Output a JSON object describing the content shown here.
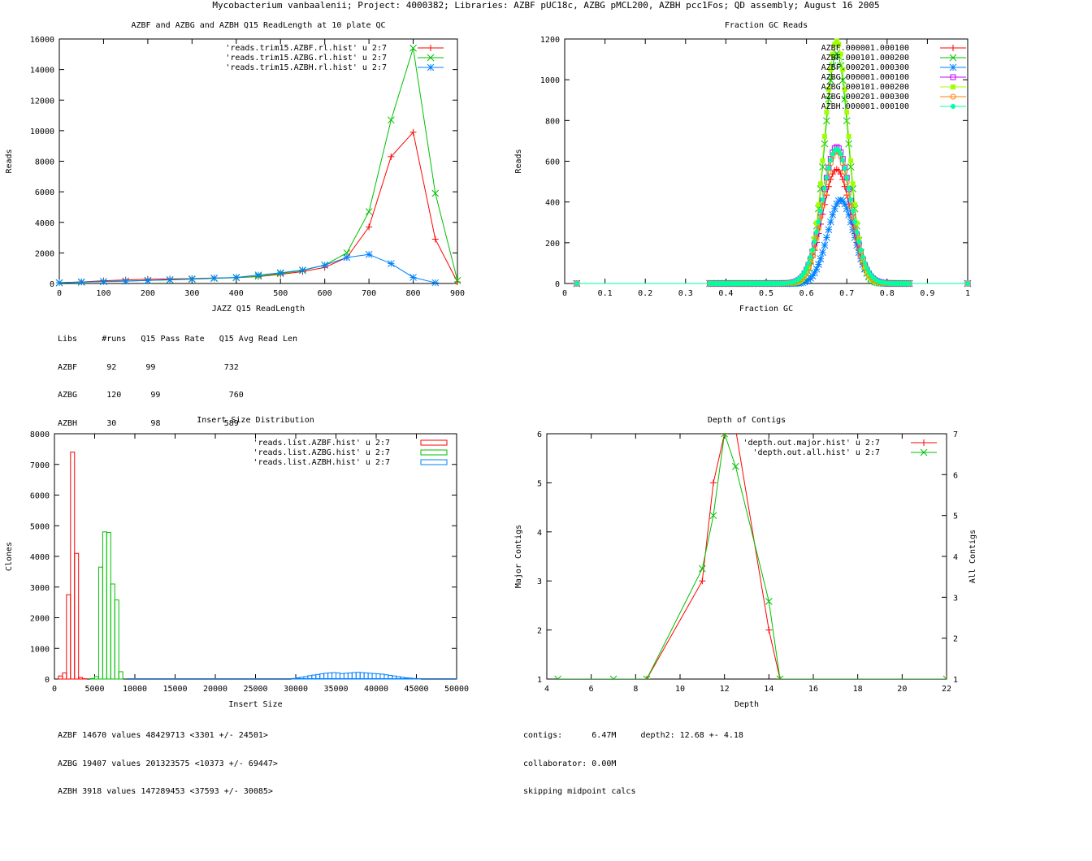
{
  "page_title": "Mycobacterium vanbaalenii; Project: 4000382; Libraries: AZBF pUC18c, AZBG pMCL200, AZBH pcc1Fos; QD assembly; August 16 2005",
  "colors": {
    "red": "#ff0000",
    "green": "#00c000",
    "blue": "#0080ff",
    "magenta": "#c000ff",
    "lime": "#a0ff00",
    "orange": "#ff8000",
    "aqua": "#00ffa0"
  },
  "chart_data": [
    {
      "id": "readlength",
      "type": "line",
      "title": "AZBF and AZBG and AZBH Q15 ReadLength at 10 plate QC",
      "xlabel": "JAZZ Q15 ReadLength",
      "ylabel": "Reads",
      "xlim": [
        0,
        900
      ],
      "ylim": [
        0,
        16000
      ],
      "xticks": [
        0,
        100,
        200,
        300,
        400,
        500,
        600,
        700,
        800,
        900
      ],
      "yticks": [
        0,
        2000,
        4000,
        6000,
        8000,
        10000,
        12000,
        14000,
        16000
      ],
      "legend_position": "top-right",
      "series": [
        {
          "name": "'reads.trim15.AZBF.rl.hist' u 2:7",
          "color": "#ff0000",
          "marker": "plus",
          "x": [
            0,
            50,
            100,
            150,
            200,
            250,
            300,
            350,
            400,
            450,
            500,
            550,
            600,
            650,
            700,
            750,
            800,
            850,
            900
          ],
          "y": [
            50,
            100,
            180,
            230,
            280,
            300,
            320,
            360,
            380,
            450,
            600,
            780,
            1050,
            1700,
            3700,
            8300,
            9900,
            2900,
            100
          ]
        },
        {
          "name": "'reads.trim15.AZBG.rl.hist' u 2:7",
          "color": "#00c000",
          "marker": "x",
          "x": [
            0,
            50,
            100,
            150,
            200,
            250,
            300,
            350,
            400,
            450,
            500,
            550,
            600,
            650,
            700,
            750,
            800,
            850,
            900
          ],
          "y": [
            40,
            80,
            130,
            160,
            200,
            230,
            280,
            330,
            380,
            480,
            650,
            850,
            1200,
            2000,
            4700,
            10700,
            15400,
            5900,
            200
          ]
        },
        {
          "name": "'reads.trim15.AZBH.rl.hist' u 2:7",
          "color": "#0080ff",
          "marker": "star",
          "x": [
            0,
            50,
            100,
            150,
            200,
            250,
            300,
            350,
            400,
            450,
            500,
            550,
            600,
            650,
            700,
            750,
            800,
            850
          ],
          "y": [
            50,
            100,
            120,
            150,
            200,
            250,
            300,
            350,
            400,
            550,
            700,
            880,
            1200,
            1700,
            1900,
            1300,
            400,
            50
          ]
        }
      ],
      "stats": {
        "header": [
          "Libs",
          "#runs",
          "Q15 Pass Rate",
          "Q15 Avg Read Len"
        ],
        "rows": [
          [
            "AZBF",
            "92",
            "99",
            "732"
          ],
          [
            "AZBG",
            "120",
            "99",
            "760"
          ],
          [
            "AZBH",
            "30",
            "98",
            "589"
          ]
        ]
      }
    },
    {
      "id": "gc",
      "type": "line",
      "title": "Fraction GC Reads",
      "xlabel": "Fraction GC",
      "ylabel": "Reads",
      "xlim": [
        0,
        1
      ],
      "ylim": [
        0,
        1200
      ],
      "xticks": [
        0,
        0.1,
        0.2,
        0.3,
        0.4,
        0.5,
        0.6,
        0.7,
        0.8,
        0.9,
        1
      ],
      "yticks": [
        0,
        200,
        400,
        600,
        800,
        1000,
        1200
      ],
      "legend_position": "top-right",
      "series": [
        {
          "name": "AZBF.000001.000100",
          "color": "#ff0000",
          "marker": "plus",
          "peak": 0.675,
          "height": 560,
          "width": 0.035
        },
        {
          "name": "AZBF.000101.000200",
          "color": "#00c000",
          "marker": "x",
          "peak": 0.675,
          "height": 1130,
          "width": 0.03
        },
        {
          "name": "AZBF.000201.000300",
          "color": "#0080ff",
          "marker": "star",
          "peak": 0.685,
          "height": 410,
          "width": 0.032
        },
        {
          "name": "AZBG.000001.000100",
          "color": "#c000ff",
          "marker": "square",
          "peak": 0.675,
          "height": 670,
          "width": 0.035
        },
        {
          "name": "AZBG.000101.000200",
          "color": "#a0ff00",
          "marker": "filled-square",
          "peak": 0.675,
          "height": 1190,
          "width": 0.03
        },
        {
          "name": "AZBG.000201.000300",
          "color": "#ff8000",
          "marker": "circle",
          "peak": 0.675,
          "height": 650,
          "width": 0.034
        },
        {
          "name": "AZBH.000001.000100",
          "color": "#00ffa0",
          "marker": "filled-circle",
          "peak": 0.675,
          "height": 660,
          "width": 0.036
        }
      ]
    },
    {
      "id": "insert",
      "type": "bar",
      "title": "Insert Size Distribution",
      "xlabel": "Insert Size",
      "ylabel": "Clones",
      "xlim": [
        0,
        50000
      ],
      "ylim": [
        0,
        8000
      ],
      "xticks": [
        0,
        5000,
        10000,
        15000,
        20000,
        25000,
        30000,
        35000,
        40000,
        45000,
        50000
      ],
      "yticks": [
        0,
        1000,
        2000,
        3000,
        4000,
        5000,
        6000,
        7000,
        8000
      ],
      "legend_position": "top-right",
      "series": [
        {
          "name": "'reads.list.AZBF.hist' u 2:7",
          "color": "#ff0000",
          "bin": 500,
          "x": [
            500,
            1000,
            1500,
            2000,
            2500,
            3000,
            3500
          ],
          "y": [
            100,
            200,
            2750,
            7400,
            4100,
            50,
            10
          ]
        },
        {
          "name": "'reads.list.AZBG.hist' u 2:7",
          "color": "#00c000",
          "bin": 500,
          "x": [
            4500,
            5000,
            5500,
            6000,
            6500,
            7000,
            7500,
            8000
          ],
          "y": [
            20,
            80,
            3650,
            4800,
            4780,
            3100,
            2580,
            240
          ]
        },
        {
          "name": "'reads.list.AZBH.hist' u 2:7",
          "color": "#0080ff",
          "bin": 500,
          "x": [
            29500,
            30000,
            30500,
            31000,
            31500,
            32000,
            32500,
            33000,
            33500,
            34000,
            34500,
            35000,
            35500,
            36000,
            36500,
            37000,
            37500,
            38000,
            38500,
            39000,
            39500,
            40000,
            40500,
            41000,
            41500,
            42000,
            42500,
            43000,
            43500,
            44000,
            44500,
            45000
          ],
          "y": [
            20,
            40,
            60,
            80,
            110,
            130,
            150,
            170,
            190,
            200,
            210,
            200,
            180,
            190,
            200,
            210,
            220,
            210,
            200,
            190,
            180,
            170,
            160,
            140,
            120,
            100,
            80,
            60,
            40,
            30,
            20,
            10
          ]
        }
      ],
      "stats": [
        "AZBF 14670 values 48429713 <3301 +/- 24501>",
        "AZBG 19407 values 201323575 <10373 +/- 69447>",
        "AZBH 3918 values 147289453 <37593 +/- 30085>"
      ]
    },
    {
      "id": "depth",
      "type": "line",
      "title": "Depth of Contigs",
      "xlabel": "Depth",
      "ylabel": "Major Contigs",
      "y2label": "All Contigs",
      "xlim": [
        4,
        22
      ],
      "ylim": [
        1,
        6
      ],
      "y2lim": [
        1,
        7
      ],
      "xticks": [
        4,
        6,
        8,
        10,
        12,
        14,
        16,
        18,
        20,
        22
      ],
      "yticks": [
        1,
        2,
        3,
        4,
        5,
        6
      ],
      "y2ticks": [
        1,
        2,
        3,
        4,
        5,
        6,
        7
      ],
      "legend_position": "top-right",
      "series": [
        {
          "name": "'depth.out.major.hist' u 2:7",
          "color": "#ff0000",
          "marker": "plus",
          "axis": "y",
          "x": [
            8.5,
            11,
            11.5,
            12,
            12.5,
            14,
            14.5,
            22
          ],
          "y": [
            1,
            3,
            5,
            6,
            6.1,
            2,
            1,
            1
          ]
        },
        {
          "name": "'depth.out.all.hist' u 2:7",
          "color": "#00c000",
          "marker": "x",
          "axis": "y2",
          "x": [
            4.5,
            7,
            8.5,
            11,
            11.5,
            12,
            12.5,
            14,
            14.5,
            22
          ],
          "y": [
            1,
            1,
            1,
            3.7,
            5,
            7,
            6.2,
            2.9,
            1,
            1
          ]
        }
      ],
      "stats": [
        "contigs:      6.47M     depth2: 12.68 +- 4.18",
        "collaborator: 0.00M",
        "skipping midpoint calcs"
      ]
    }
  ]
}
